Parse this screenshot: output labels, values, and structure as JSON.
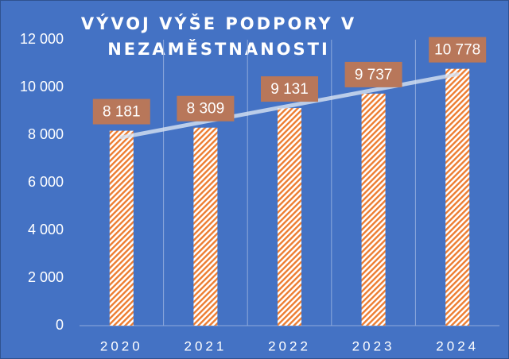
{
  "chart_data": {
    "type": "bar",
    "title": "VÝVOJ VÝŠE PODPORY V NEZAMĚSTNANOSTI",
    "categories": [
      "2020",
      "2021",
      "2022",
      "2023",
      "2024"
    ],
    "values": [
      8181,
      8309,
      9131,
      9737,
      10778
    ],
    "value_labels": [
      "8 181",
      "8 309",
      "9 131",
      "9 737",
      "10 778"
    ],
    "color": "#ed7d31",
    "label_color": "#b8775a",
    "trendline": "linear",
    "ylim": [
      0,
      12000
    ],
    "yticks": [
      0,
      {
        "value": 2000,
        "label": "2 000"
      },
      {
        "value": 4000,
        "label": "4 000"
      },
      {
        "value": 6000,
        "label": "6 000"
      },
      {
        "value": 8000,
        "label": "8 000"
      },
      {
        "value": 10000,
        "label": "10 000"
      },
      {
        "value": 12000,
        "label": "12 000"
      }
    ]
  }
}
